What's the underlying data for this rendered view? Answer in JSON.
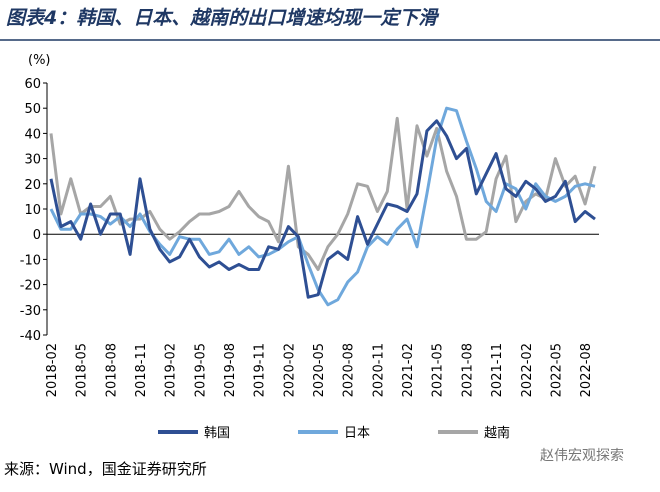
{
  "chart_data": {
    "type": "line",
    "title": "图表4：韩国、日本、越南的出口增速均现一定下滑",
    "y_label": "(%)",
    "source": "来源：Wind，国金证券研究所",
    "watermark": "赵伟宏观探索",
    "categories": [
      "2018-02",
      null,
      null,
      "2018-05",
      null,
      null,
      "2018-08",
      null,
      null,
      "2018-11",
      null,
      null,
      "2019-02",
      null,
      null,
      "2019-05",
      null,
      null,
      "2019-08",
      null,
      null,
      "2019-11",
      null,
      null,
      "2020-02",
      null,
      null,
      "2020-05",
      null,
      null,
      "2020-08",
      null,
      null,
      "2020-11",
      null,
      null,
      "2021-02",
      null,
      null,
      "2021-05",
      null,
      null,
      "2021-08",
      null,
      null,
      "2021-11",
      null,
      null,
      "2022-02",
      null,
      null,
      "2022-05",
      null,
      null,
      "2022-08",
      null
    ],
    "ylim": [
      -40,
      60
    ],
    "yticks": [
      -40,
      -30,
      -20,
      -10,
      0,
      10,
      20,
      30,
      40,
      50,
      60
    ],
    "series": [
      {
        "name": "韩国",
        "color": "#2e4f93",
        "values": [
          22,
          3,
          5,
          -2,
          12,
          0,
          8,
          8,
          -8,
          22,
          2,
          -6,
          -11,
          -9,
          -2,
          -9,
          -13,
          -11,
          -14,
          -12,
          -14,
          -14,
          -5,
          -6,
          3,
          -1,
          -25,
          -24,
          -10,
          -7,
          -10,
          7,
          -4,
          4,
          12,
          11,
          9,
          16,
          41,
          45,
          39,
          30,
          34,
          16,
          24,
          32,
          18,
          15,
          21,
          18,
          13,
          15,
          21,
          5,
          9,
          6
        ]
      },
      {
        "name": "日本",
        "color": "#6fa8dc",
        "values": [
          10,
          2,
          2,
          8,
          8,
          7,
          4,
          7,
          3,
          8,
          1,
          -4,
          -8,
          -1,
          -2,
          -2,
          -8,
          -7,
          -2,
          -8,
          -5,
          -9,
          -8,
          -6,
          -3,
          -1,
          -12,
          -22,
          -28,
          -26,
          -19,
          -15,
          -5,
          -1,
          -4,
          2,
          6,
          -5,
          16,
          38,
          50,
          49,
          37,
          26,
          13,
          9,
          20,
          18,
          10,
          20,
          15,
          13,
          15,
          19,
          20,
          19
        ]
      },
      {
        "name": "越南",
        "color": "#a6a6a6",
        "values": [
          40,
          8,
          22,
          8,
          11,
          11,
          15,
          4,
          6,
          6,
          9,
          2,
          -2,
          1,
          5,
          8,
          8,
          9,
          11,
          17,
          11,
          7,
          5,
          -3,
          27,
          -5,
          -8,
          -14,
          -5,
          0,
          8,
          20,
          19,
          9,
          17,
          46,
          10,
          43,
          31,
          42,
          25,
          15,
          -2,
          -2,
          1,
          22,
          31,
          5,
          13,
          16,
          14,
          30,
          19,
          23,
          12,
          27
        ]
      }
    ]
  }
}
